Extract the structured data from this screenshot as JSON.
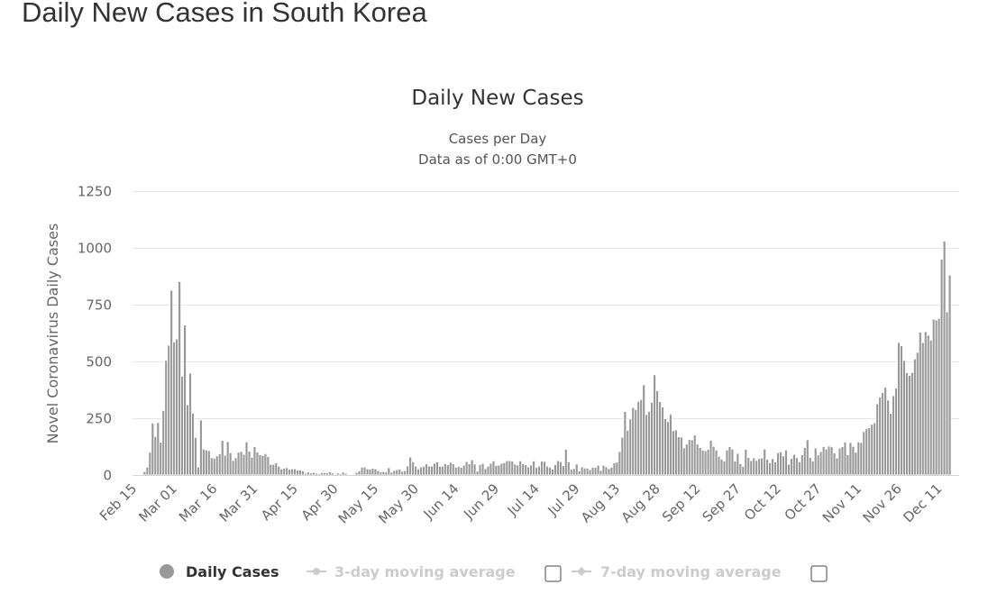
{
  "page": {
    "title": "Daily New Cases in South Korea"
  },
  "chart_data": {
    "type": "bar",
    "title": "Daily New Cases",
    "subtitle_lines": [
      "Cases per Day",
      "Data as of 0:00 GMT+0"
    ],
    "ylabel": "Novel Coronavirus Daily Cases",
    "xlabel": "",
    "ylim": [
      0,
      1250
    ],
    "y_ticks": [
      "0",
      "250",
      "500",
      "750",
      "1000",
      "1250"
    ],
    "x_start_date": "Feb 15",
    "x_tick_labels": [
      "Feb 15",
      "Mar 01",
      "Mar 16",
      "Mar 31",
      "Apr 15",
      "Apr 30",
      "May 15",
      "May 30",
      "Jun 14",
      "Jun 29",
      "Jul 14",
      "Jul 29",
      "Aug 13",
      "Aug 28",
      "Sep 12",
      "Sep 27",
      "Oct 12",
      "Oct 27",
      "Nov 11",
      "Nov 26",
      "Dec 11"
    ],
    "x_tick_interval_days": 15,
    "grid": true,
    "legend_position": "bottom",
    "legend": [
      {
        "label": "Daily Cases",
        "active": true,
        "color": "#999999"
      },
      {
        "label": "3-day moving average",
        "active": false,
        "color": "#cccccc"
      },
      {
        "label": "7-day moving average",
        "active": false,
        "color": "#cccccc"
      }
    ],
    "series": [
      {
        "name": "Daily Cases",
        "values": [
          0,
          0,
          0,
          1,
          15,
          34,
          100,
          229,
          169,
          231,
          144,
          284,
          505,
          571,
          813,
          586,
          599,
          851,
          435,
          660,
          309,
          448,
          272,
          165,
          35,
          242,
          114,
          110,
          107,
          76,
          74,
          84,
          93,
          152,
          87,
          147,
          98,
          64,
          76,
          100,
          104,
          91,
          146,
          105,
          78,
          125,
          101,
          89,
          86,
          94,
          81,
          47,
          47,
          53,
          39,
          27,
          30,
          32,
          25,
          27,
          27,
          22,
          22,
          18,
          8,
          13,
          9,
          11,
          8,
          6,
          10,
          10,
          10,
          14,
          9,
          4,
          9,
          6,
          13,
          8,
          3,
          2,
          4,
          12,
          18,
          34,
          35,
          27,
          26,
          29,
          27,
          19,
          13,
          15,
          13,
          32,
          12,
          20,
          23,
          25,
          16,
          19,
          40,
          79,
          58,
          39,
          27,
          35,
          38,
          49,
          39,
          39,
          51,
          57,
          38,
          38,
          50,
          45,
          56,
          49,
          34,
          37,
          34,
          43,
          59,
          49,
          67,
          48,
          17,
          46,
          51,
          28,
          39,
          51,
          62,
          42,
          43,
          51,
          54,
          63,
          63,
          61,
          48,
          44,
          62,
          50,
          45,
          35,
          44,
          62,
          33,
          39,
          61,
          60,
          39,
          34,
          26,
          45,
          63,
          59,
          41,
          113,
          58,
          25,
          28,
          48,
          18,
          36,
          31,
          30,
          23,
          34,
          33,
          43,
          20,
          43,
          36,
          28,
          34,
          54,
          56,
          103,
          166,
          279,
          197,
          246,
          297,
          288,
          324,
          332,
          397,
          266,
          280,
          320,
          441,
          371,
          323,
          299,
          248,
          235,
          267,
          195,
          198,
          168,
          167,
          119,
          136,
          156,
          155,
          176,
          136,
          121,
          109,
          106,
          113,
          153,
          126,
          110,
          82,
          70,
          61,
          110,
          125,
          114,
          61,
          95,
          50,
          38,
          113,
          77,
          63,
          75,
          64,
          73,
          75,
          114,
          69,
          54,
          72,
          58,
          98,
          102,
          84,
          110,
          47,
          73,
          91,
          76,
          58,
          89,
          121,
          155,
          77,
          61,
          119,
          88,
          103,
          125,
          114,
          127,
          124,
          97,
          75,
          118,
          125,
          145,
          89,
          143,
          126,
          100,
          146,
          143,
          191,
          205,
          208,
          223,
          230,
          313,
          343,
          363,
          386,
          330,
          271,
          349,
          382,
          583,
          569,
          504,
          450,
          438,
          451,
          511,
          540,
          629,
          583,
          631,
          615,
          594,
          686,
          682,
          689,
          950,
          1030,
          718,
          880
        ]
      }
    ]
  }
}
